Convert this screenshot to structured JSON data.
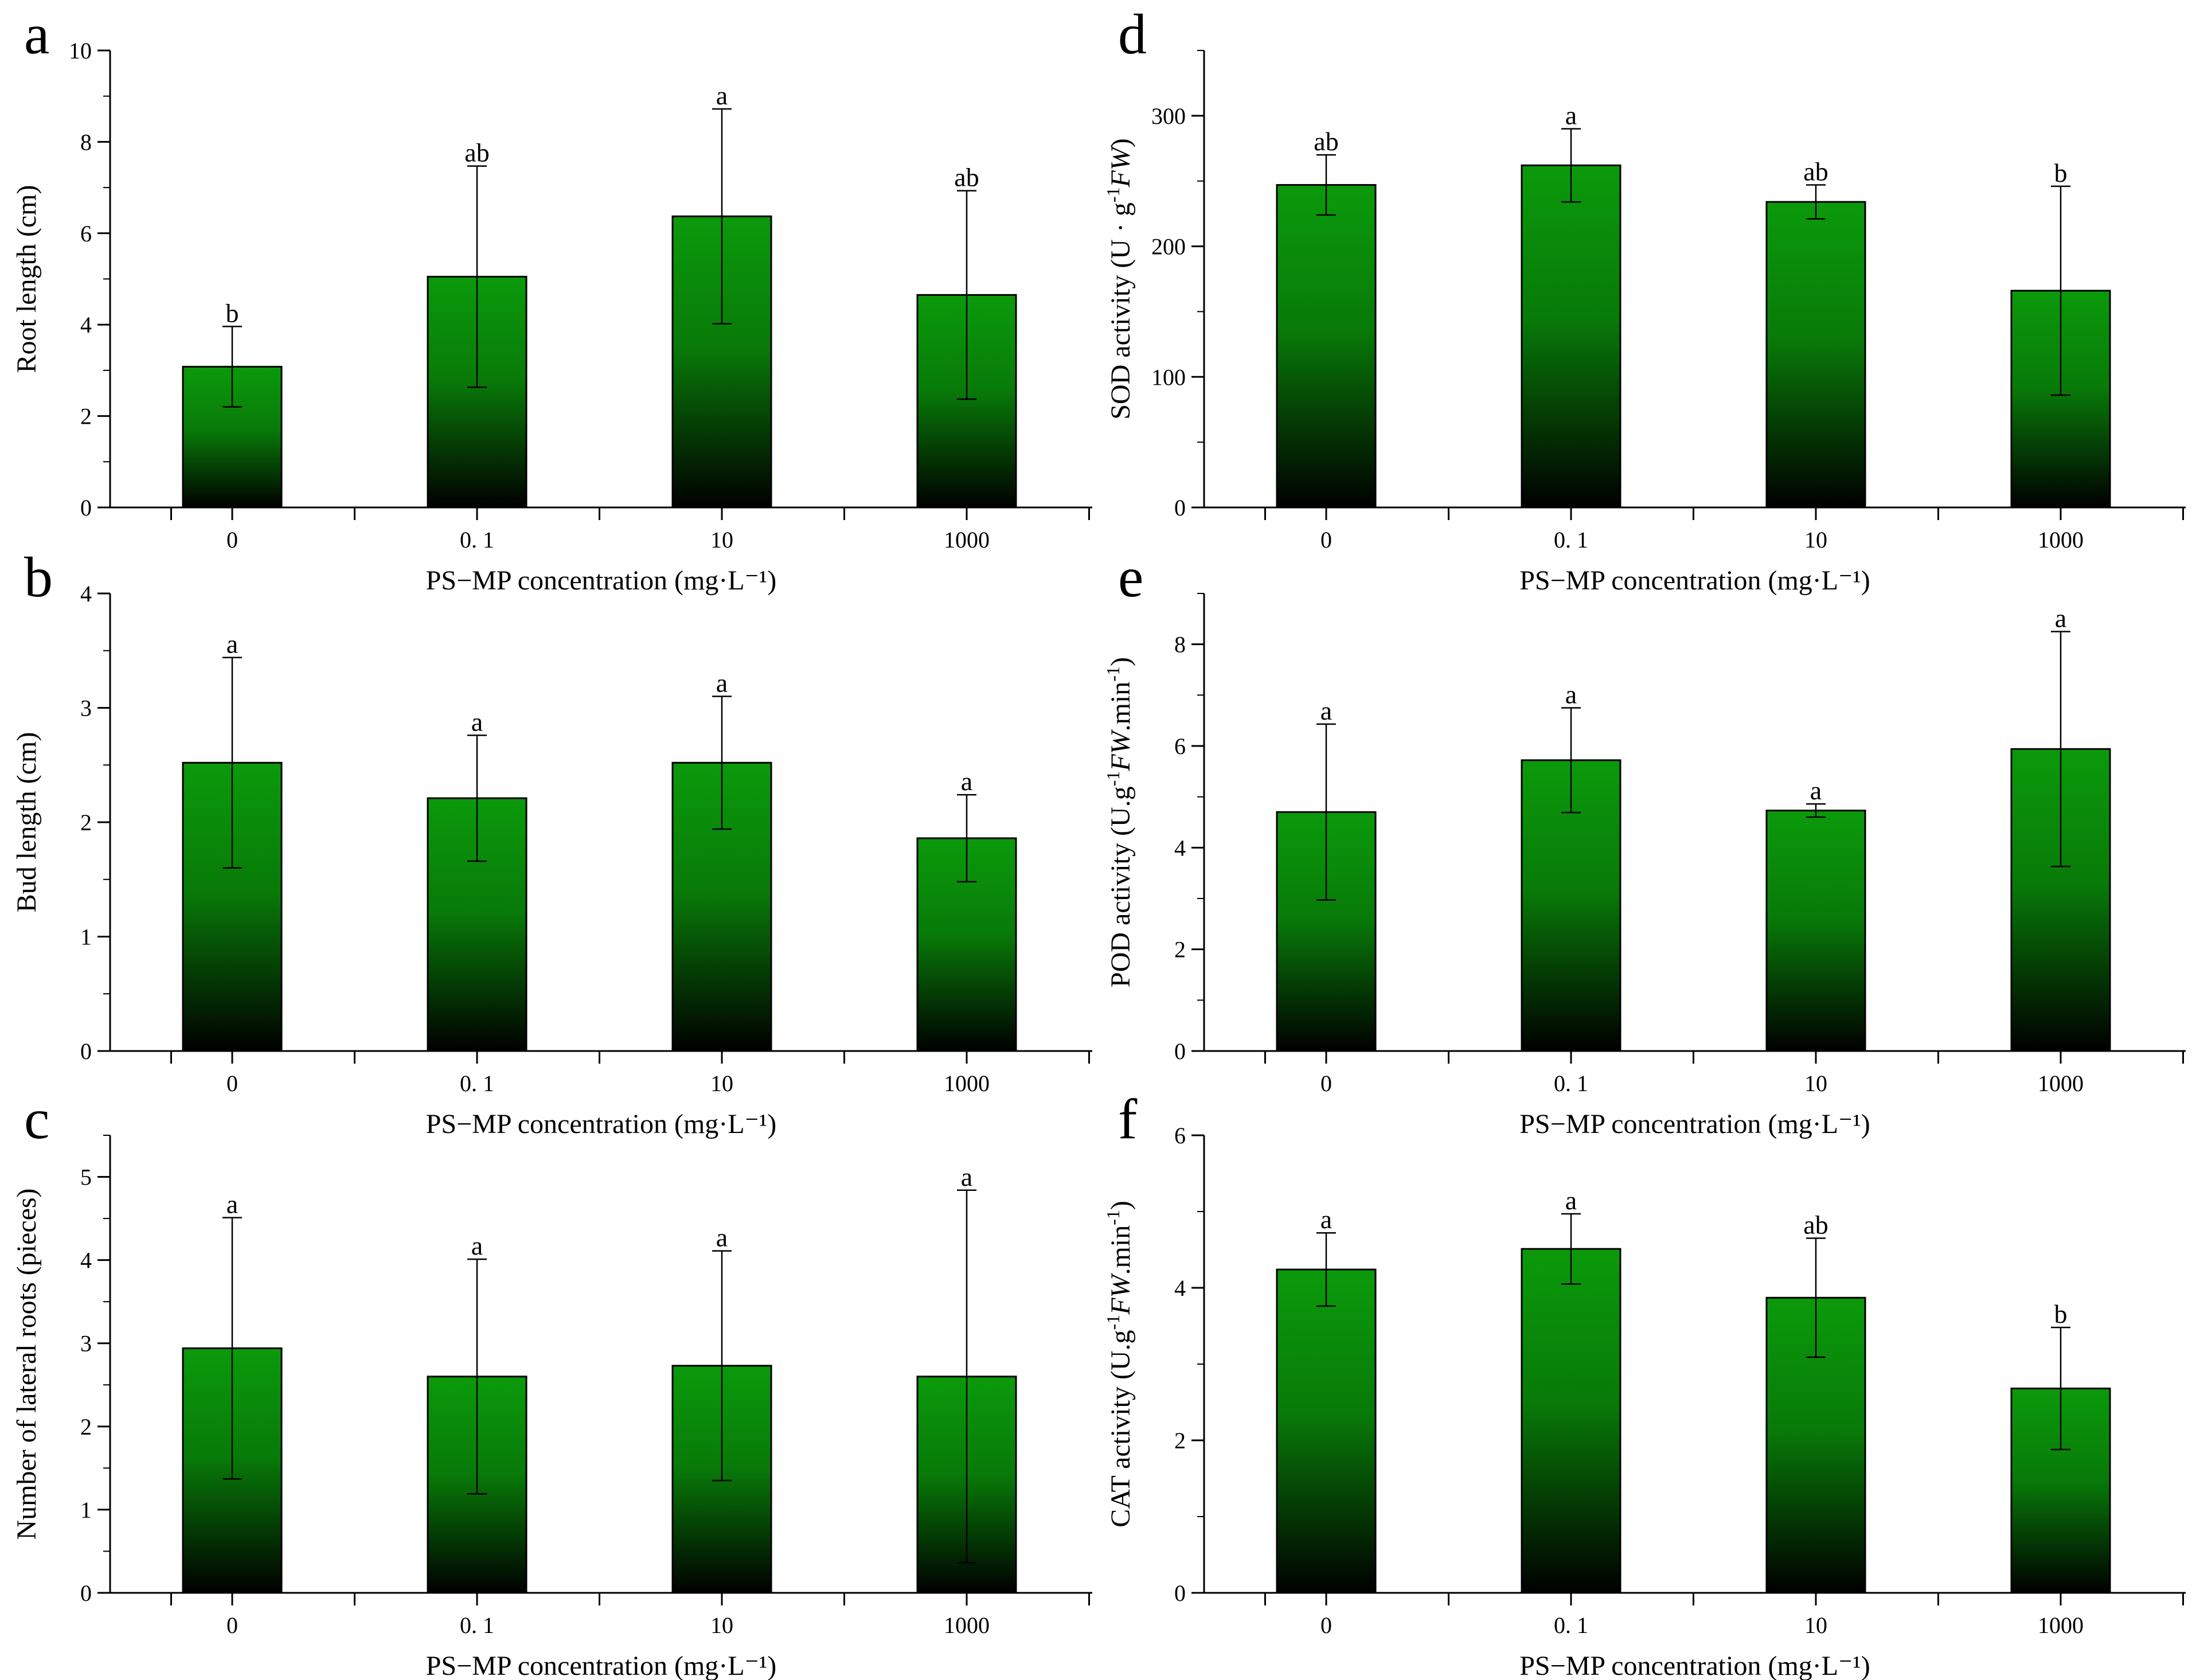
{
  "figure": {
    "bar_color_top": "#0b9a0b",
    "bar_color_bottom": "#000000"
  },
  "chart_data": [
    {
      "panel": "a",
      "type": "bar",
      "categories": [
        "0",
        "0. 1",
        "10",
        "1000"
      ],
      "values": [
        3.08,
        5.05,
        6.37,
        4.65
      ],
      "errors": [
        0.88,
        2.42,
        2.35,
        2.28
      ],
      "significance": [
        "b",
        "ab",
        "a",
        "ab"
      ],
      "xlabel": "PS−MP concentration (mg·L⁻¹)",
      "ylabel": "Root length (cm)",
      "ylim": [
        0,
        10
      ],
      "yticks": [
        0,
        2,
        4,
        6,
        8,
        10
      ],
      "ytick_labels": [
        "0",
        "2",
        "4",
        "6",
        "8",
        "10"
      ]
    },
    {
      "panel": "b",
      "type": "bar",
      "categories": [
        "0",
        "0. 1",
        "10",
        "1000"
      ],
      "values": [
        2.52,
        2.21,
        2.52,
        1.86
      ],
      "errors": [
        0.92,
        0.55,
        0.58,
        0.38
      ],
      "significance": [
        "a",
        "a",
        "a",
        "a"
      ],
      "xlabel": "PS−MP concentration (mg·L⁻¹)",
      "ylabel": "Bud length (cm)",
      "ylim": [
        0,
        4
      ],
      "yticks": [
        0,
        1,
        2,
        3,
        4
      ],
      "ytick_labels": [
        "0",
        "1",
        "2",
        "3",
        "4"
      ]
    },
    {
      "panel": "c",
      "type": "bar",
      "categories": [
        "0",
        "0. 1",
        "10",
        "1000"
      ],
      "values": [
        2.94,
        2.6,
        2.73,
        2.6
      ],
      "errors": [
        1.57,
        1.41,
        1.38,
        2.24
      ],
      "significance": [
        "a",
        "a",
        "a",
        "a"
      ],
      "xlabel": "PS−MP concentration (mg·L⁻¹)",
      "ylabel": "Number of lateral roots (pieces)",
      "ylim": [
        0,
        5.5
      ],
      "yticks": [
        0,
        1,
        2,
        3,
        4,
        5
      ],
      "ytick_labels": [
        "0",
        "1",
        "2",
        "3",
        "4",
        "5"
      ]
    },
    {
      "panel": "d",
      "type": "bar",
      "categories": [
        "0",
        "0. 1",
        "10",
        "1000"
      ],
      "values": [
        247,
        262,
        234,
        166
      ],
      "errors": [
        23,
        28,
        13,
        80
      ],
      "significance": [
        "ab",
        "a",
        "ab",
        "b"
      ],
      "xlabel": "PS−MP concentration (mg·L⁻¹)",
      "ylabel_parts": [
        "SOD activity (U · g",
        "-1",
        "FW",
        ")"
      ],
      "ylim": [
        0,
        350
      ],
      "yticks": [
        0,
        100,
        200,
        300
      ],
      "ytick_labels": [
        "0",
        "100",
        "200",
        "300"
      ]
    },
    {
      "panel": "e",
      "type": "bar",
      "categories": [
        "0",
        "0. 1",
        "10",
        "1000"
      ],
      "values": [
        4.7,
        5.72,
        4.73,
        5.94
      ],
      "errors": [
        1.73,
        1.03,
        0.13,
        2.31
      ],
      "significance": [
        "a",
        "a",
        "a",
        "a"
      ],
      "xlabel": "PS−MP concentration (mg·L⁻¹)",
      "ylabel_parts": [
        "POD activity (U.g",
        "-1",
        "FW",
        ".min",
        "-1",
        ")"
      ],
      "ylim": [
        0,
        9
      ],
      "yticks": [
        0,
        2,
        4,
        6,
        8
      ],
      "ytick_labels": [
        "0",
        "2",
        "4",
        "6",
        "8"
      ]
    },
    {
      "panel": "f",
      "type": "bar",
      "categories": [
        "0",
        "0. 1",
        "10",
        "1000"
      ],
      "values": [
        4.24,
        4.51,
        3.87,
        2.68
      ],
      "errors": [
        0.48,
        0.46,
        0.78,
        0.8
      ],
      "significance": [
        "a",
        "a",
        "ab",
        "b"
      ],
      "xlabel": "PS−MP concentration (mg·L⁻¹)",
      "ylabel_parts": [
        "CAT activity (U.g",
        "-1",
        "FW",
        ".min",
        "-1",
        ")"
      ],
      "ylim": [
        0,
        6
      ],
      "yticks": [
        0,
        2,
        4,
        6
      ],
      "ytick_labels": [
        "0",
        "2",
        "4",
        "6"
      ]
    }
  ]
}
